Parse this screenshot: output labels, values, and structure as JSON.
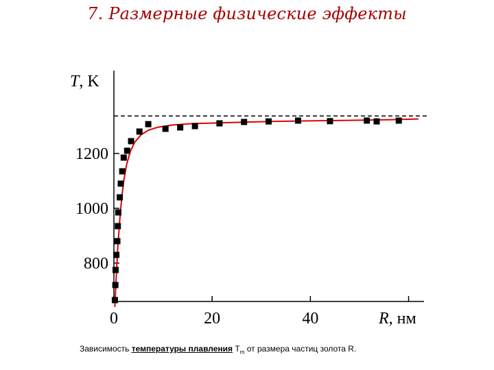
{
  "slide": {
    "title": "7. Размерные физические эффекты"
  },
  "caption": {
    "part1": "Зависимость ",
    "emphasis": "температуры плавления",
    "part2": " T",
    "subscript": "m",
    "part3": " от размера частиц золота R."
  },
  "chart_data": {
    "type": "scatter",
    "title": "",
    "xlabel_var": "R",
    "xlabel_unit": ", нм",
    "ylabel_var": "T",
    "ylabel_unit": ", K",
    "xlim": [
      0,
      63
    ],
    "ylim": [
      660,
      1460
    ],
    "x_ticks": [
      0,
      20,
      40
    ],
    "y_ticks": [
      800,
      1000,
      1200
    ],
    "asymptote_T": 1337,
    "colors": {
      "points": "#000000",
      "fit": "#e00000",
      "axes": "#000000",
      "asymptote": "#000000"
    },
    "series": [
      {
        "values_xy": [
          [
            0.2,
            665
          ],
          [
            0.3,
            720
          ],
          [
            0.35,
            775
          ],
          [
            0.5,
            830
          ],
          [
            0.7,
            880
          ],
          [
            0.8,
            935
          ],
          [
            0.9,
            985
          ],
          [
            1.2,
            1040
          ],
          [
            1.4,
            1090
          ],
          [
            1.7,
            1135
          ],
          [
            2.0,
            1185
          ],
          [
            2.7,
            1210
          ],
          [
            3.5,
            1245
          ],
          [
            5.2,
            1280
          ],
          [
            7.0,
            1307
          ],
          [
            10.5,
            1290
          ],
          [
            13.5,
            1295
          ],
          [
            16.5,
            1300
          ],
          [
            21.5,
            1310
          ],
          [
            26.5,
            1315
          ],
          [
            31.5,
            1317
          ],
          [
            37.5,
            1320
          ],
          [
            44,
            1318
          ],
          [
            51.5,
            1320
          ],
          [
            53.5,
            1317
          ],
          [
            58,
            1320
          ]
        ]
      }
    ],
    "fit_curve": [
      [
        0.2,
        640
      ],
      [
        0.5,
        760
      ],
      [
        0.8,
        860
      ],
      [
        1.2,
        960
      ],
      [
        1.6,
        1040
      ],
      [
        2.0,
        1100
      ],
      [
        2.6,
        1160
      ],
      [
        3.3,
        1205
      ],
      [
        4.2,
        1240
      ],
      [
        5.5,
        1268
      ],
      [
        7.0,
        1285
      ],
      [
        9.0,
        1296
      ],
      [
        12,
        1304
      ],
      [
        16,
        1309
      ],
      [
        20,
        1311
      ],
      [
        26,
        1314
      ],
      [
        32,
        1317
      ],
      [
        40,
        1319
      ],
      [
        48,
        1321
      ],
      [
        56,
        1323
      ],
      [
        62,
        1326
      ]
    ]
  }
}
